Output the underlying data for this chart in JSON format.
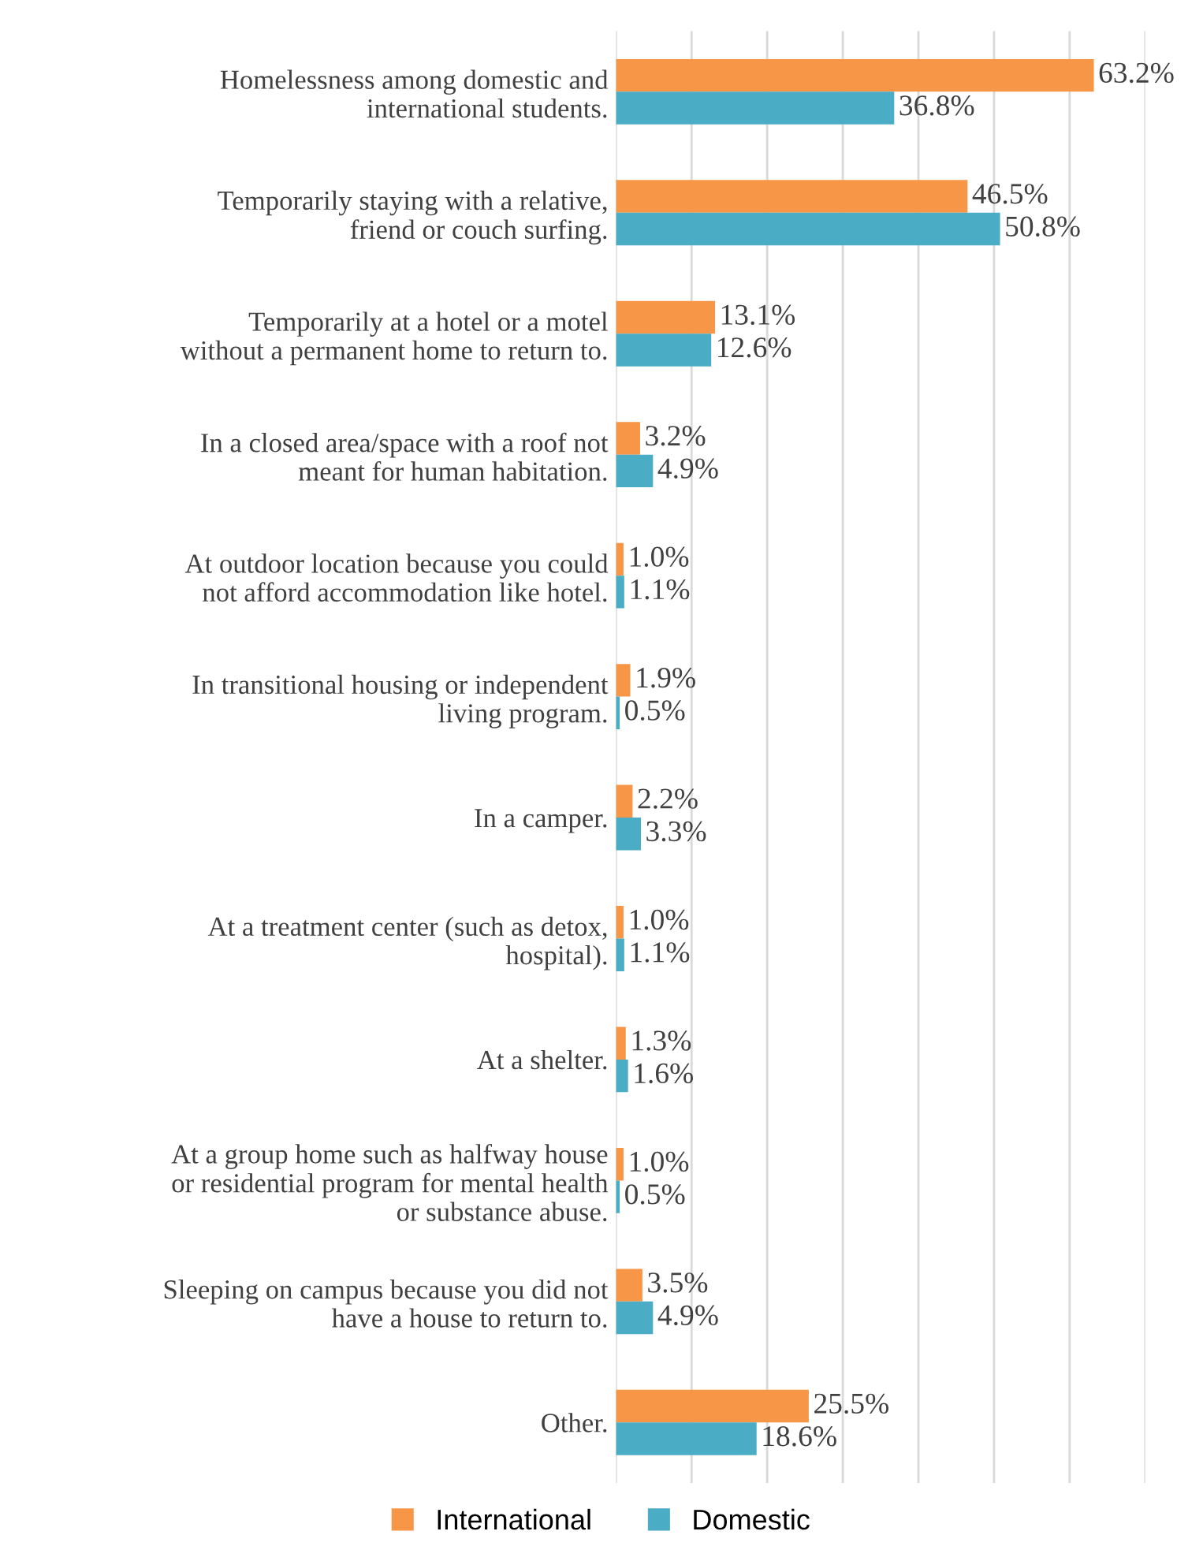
{
  "chart_data": {
    "type": "bar",
    "orientation": "horizontal",
    "categories": [
      "Homelessness among domestic and\ninternational students.",
      "Temporarily staying with a relative,\nfriend or couch surfing.",
      "Temporarily at a hotel or a motel\nwithout a permanent home to return to.",
      "In a closed area/space with a roof not\nmeant for human habitation.",
      "At outdoor location because you could\nnot afford accommodation like hotel.",
      "In transitional housing or independent\nliving program.",
      "In a camper.",
      "At a treatment center (such as detox,\nhospital).",
      "At a shelter.",
      "At a group home such as halfway house\nor residential program for mental health\nor substance abuse.",
      "Sleeping on campus because you did not\nhave a house to return to.",
      "Other."
    ],
    "series": [
      {
        "name": "International",
        "color": "#f79646",
        "values": [
          63.2,
          46.5,
          13.1,
          3.2,
          1.0,
          1.9,
          2.2,
          1.0,
          1.3,
          1.0,
          3.5,
          25.5
        ],
        "value_labels": [
          "63.2%",
          "46.5%",
          "13.1%",
          "3.2%",
          "1.0%",
          "1.9%",
          "2.2%",
          "1.0%",
          "1.3%",
          "1.0%",
          "3.5%",
          "25.5%"
        ]
      },
      {
        "name": "Domestic",
        "color": "#4bacc6",
        "values": [
          36.8,
          50.8,
          12.6,
          4.9,
          1.1,
          0.5,
          3.3,
          1.1,
          1.6,
          0.5,
          4.9,
          18.6
        ],
        "value_labels": [
          "36.8%",
          "50.8%",
          "12.6%",
          "4.9%",
          "1.1%",
          "0.5%",
          "3.3%",
          "1.1%",
          "1.6%",
          "0.5%",
          "4.9%",
          "18.6%"
        ]
      }
    ],
    "xlim": [
      0,
      70
    ],
    "xticks": [
      {
        "value": 0,
        "label": null
      },
      {
        "value": 10,
        "label": null
      },
      {
        "value": 20,
        "label": null
      },
      {
        "value": 30,
        "label": null
      },
      {
        "value": 40,
        "label": null
      },
      {
        "value": 50,
        "label": null
      },
      {
        "value": 60,
        "label": null
      },
      {
        "value": 70,
        "label": null
      }
    ],
    "grid": "x",
    "legend": "bottom"
  }
}
